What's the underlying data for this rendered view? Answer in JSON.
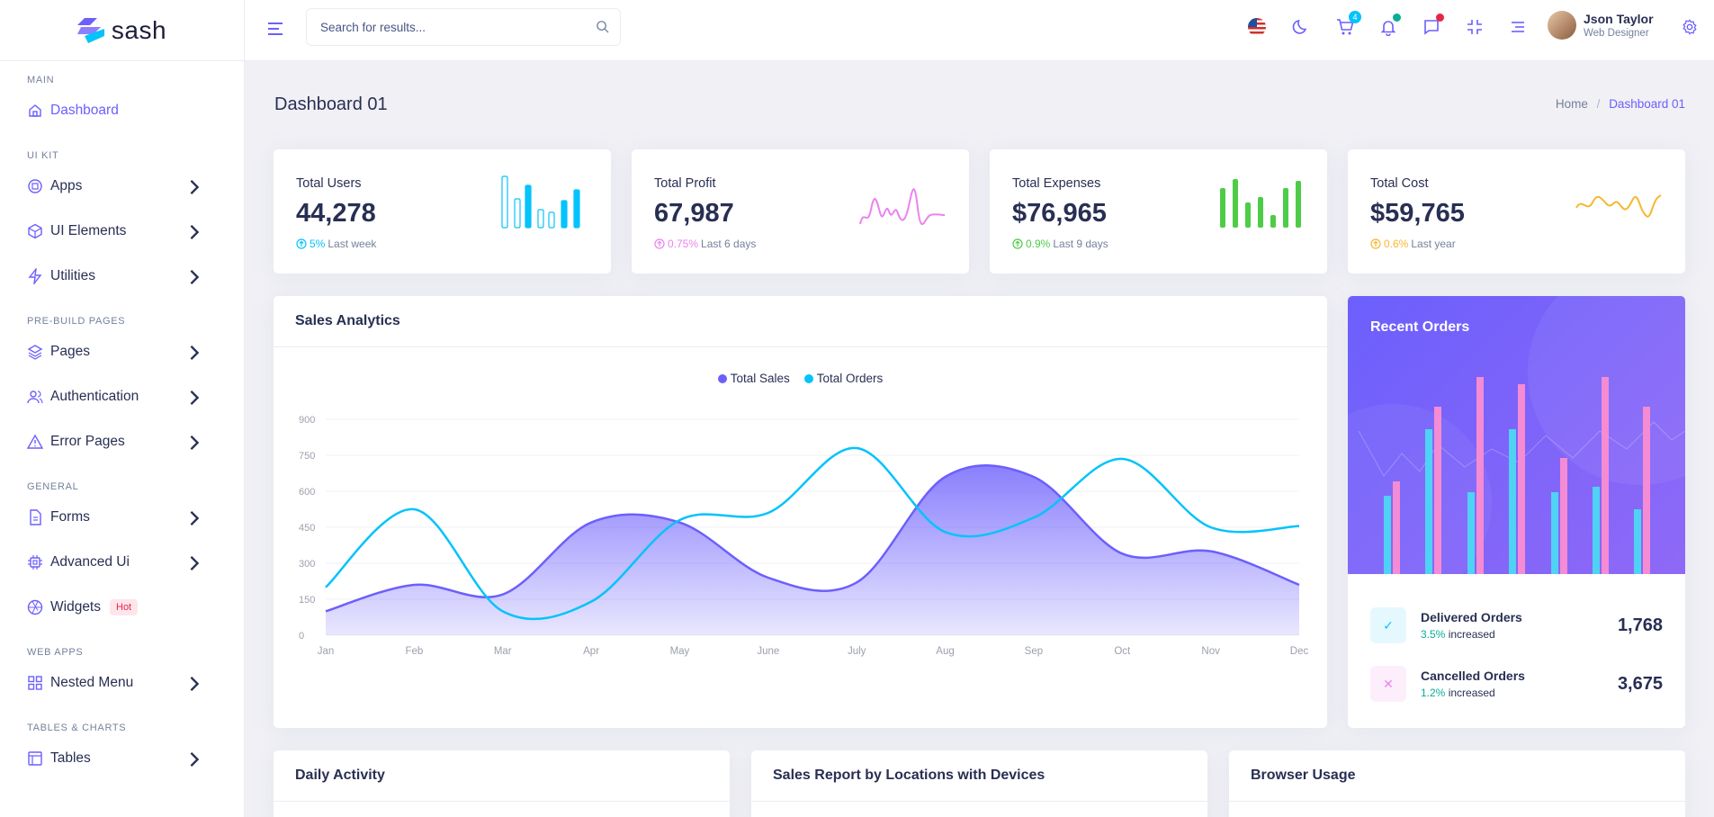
{
  "brand": {
    "name": "sash"
  },
  "sidebar": {
    "sections": [
      {
        "label": "MAIN",
        "items": [
          {
            "label": "Dashboard",
            "icon": "home-icon",
            "active": true
          }
        ]
      },
      {
        "label": "UI KIT",
        "items": [
          {
            "label": "Apps",
            "icon": "grid-icon"
          },
          {
            "label": "UI Elements",
            "icon": "package-icon"
          },
          {
            "label": "Utilities",
            "icon": "zap-icon"
          }
        ]
      },
      {
        "label": "PRE-BUILD PAGES",
        "items": [
          {
            "label": "Pages",
            "icon": "layers-icon"
          },
          {
            "label": "Authentication",
            "icon": "users-icon"
          },
          {
            "label": "Error Pages",
            "icon": "alert-triangle-icon"
          }
        ]
      },
      {
        "label": "GENERAL",
        "items": [
          {
            "label": "Forms",
            "icon": "file-text-icon"
          },
          {
            "label": "Advanced Ui",
            "icon": "cpu-icon"
          },
          {
            "label": "Widgets",
            "icon": "aperture-icon",
            "badge": "Hot"
          }
        ]
      },
      {
        "label": "WEB APPS",
        "items": [
          {
            "label": "Nested Menu",
            "icon": "sliders-icon"
          }
        ]
      },
      {
        "label": "TABLES & CHARTS",
        "items": [
          {
            "label": "Tables",
            "icon": "table-icon"
          }
        ]
      }
    ]
  },
  "header": {
    "search_placeholder": "Search for results...",
    "cart_count": "4",
    "user": {
      "name": "Json Taylor",
      "role": "Web Designer"
    }
  },
  "page": {
    "title": "Dashboard 01",
    "breadcrumb": [
      "Home",
      "Dashboard 01"
    ]
  },
  "stats": [
    {
      "title": "Total Users",
      "value": "44,278",
      "change": "5%",
      "period": "Last week",
      "color": "#05c3fb"
    },
    {
      "title": "Total Profit",
      "value": "67,987",
      "change": "0.75%",
      "period": "Last 6 days",
      "color": "#ec82ef"
    },
    {
      "title": "Total Expenses",
      "value": "$76,965",
      "change": "0.9%",
      "period": "Last 9 days",
      "color": "#4ecc48"
    },
    {
      "title": "Total Cost",
      "value": "$59,765",
      "change": "0.6%",
      "period": "Last year",
      "color": "#f7b731"
    }
  ],
  "sales_analytics": {
    "title": "Sales Analytics"
  },
  "chart_data": {
    "type": "line",
    "categories": [
      "Jan",
      "Feb",
      "Mar",
      "Apr",
      "May",
      "June",
      "July",
      "Aug",
      "Sep",
      "Oct",
      "Nov",
      "Dec"
    ],
    "series": [
      {
        "name": "Total Sales",
        "color": "#6c5ffc",
        "fill": true,
        "values": [
          100,
          210,
          170,
          470,
          470,
          240,
          220,
          660,
          660,
          340,
          350,
          210
        ]
      },
      {
        "name": "Total Orders",
        "color": "#05c3fb",
        "fill": false,
        "values": [
          200,
          525,
          100,
          140,
          480,
          510,
          780,
          430,
          490,
          735,
          450,
          455
        ]
      }
    ],
    "yticks": [
      0,
      150,
      300,
      450,
      600,
      750,
      900
    ],
    "ylim": [
      0,
      900
    ],
    "legend": "top-center",
    "grid": true
  },
  "recent_orders": {
    "title": "Recent Orders",
    "rows": [
      {
        "title": "Delivered Orders",
        "change": "3.5%",
        "note": "increased",
        "value": "1,768",
        "icon": "check-icon"
      },
      {
        "title": "Cancelled Orders",
        "change": "1.2%",
        "note": "increased",
        "value": "3,675",
        "icon": "x-icon"
      }
    ]
  },
  "bottom_cards": [
    {
      "title": "Daily Activity"
    },
    {
      "title": "Sales Report by Locations with Devices"
    },
    {
      "title": "Browser Usage"
    }
  ]
}
